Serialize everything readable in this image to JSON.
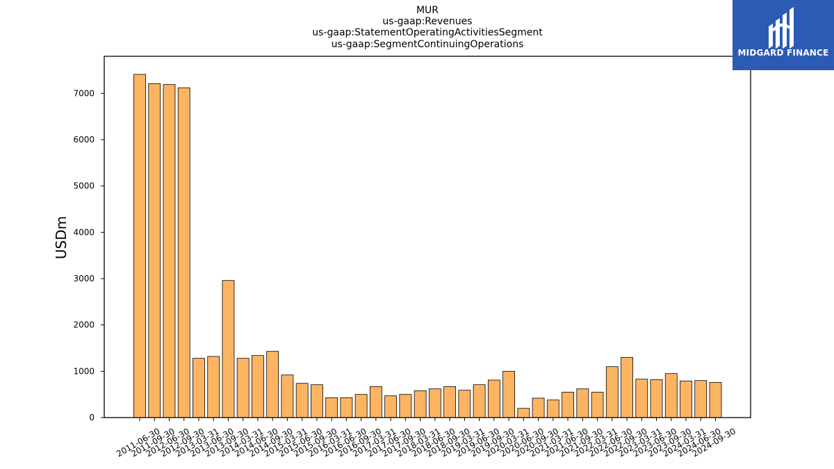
{
  "title_lines": [
    "MUR",
    "us-gaap:Revenues",
    "us-gaap:StatementOperatingActivitiesSegment",
    "us-gaap:SegmentContinuingOperations"
  ],
  "logo": {
    "text": "MIDGARD FINANCE",
    "background": "#2b5bb5"
  },
  "chart_data": {
    "type": "bar",
    "title": "MUR\nus-gaap:Revenues\nus-gaap:StatementOperatingActivitiesSegment\nus-gaap:SegmentContinuingOperations",
    "xlabel": "",
    "ylabel": "USDm",
    "ylim": [
      0,
      7800
    ],
    "yticks": [
      0,
      1000,
      2000,
      3000,
      4000,
      5000,
      6000,
      7000
    ],
    "bar_color": "#fdb462",
    "grid": false,
    "categories": [
      "2011-06-30",
      "2011-09-30",
      "2012-06-30",
      "2012-09-30",
      "2013-03-31",
      "2013-06-30",
      "2013-09-30",
      "2014-03-31",
      "2014-06-30",
      "2014-09-30",
      "2015-03-31",
      "2015-06-30",
      "2015-09-30",
      "2016-03-31",
      "2016-06-30",
      "2016-09-30",
      "2017-03-31",
      "2017-06-30",
      "2017-09-30",
      "2018-03-31",
      "2018-06-30",
      "2018-09-30",
      "2019-03-31",
      "2019-06-30",
      "2019-09-30",
      "2020-03-31",
      "2020-06-30",
      "2020-09-30",
      "2021-03-31",
      "2021-06-30",
      "2021-09-30",
      "2022-03-31",
      "2022-06-30",
      "2022-09-30",
      "2023-03-31",
      "2023-06-30",
      "2023-09-30",
      "2024-03-31",
      "2024-06-30",
      "2024-09-30"
    ],
    "values": [
      7410,
      7210,
      7190,
      7120,
      1280,
      1320,
      2960,
      1280,
      1340,
      1430,
      920,
      740,
      710,
      430,
      430,
      500,
      670,
      470,
      500,
      580,
      620,
      670,
      590,
      710,
      810,
      1000,
      200,
      420,
      380,
      550,
      620,
      550,
      1100,
      1300,
      830,
      820,
      950,
      790,
      800,
      760
    ]
  }
}
